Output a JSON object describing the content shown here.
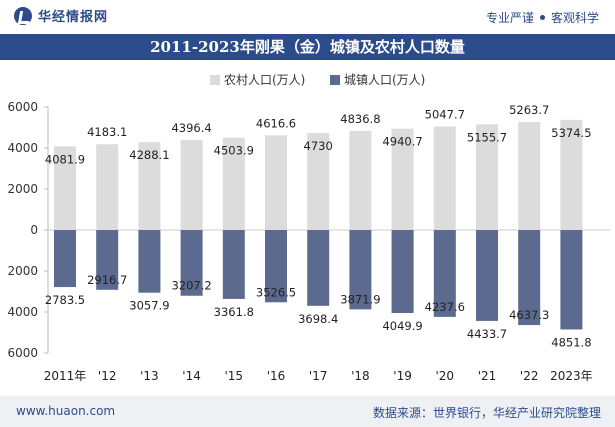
{
  "header": {
    "logo_text": "华经情报网",
    "tagline_left": "专业严谨",
    "tagline_right": "客观科学"
  },
  "footer": {
    "site": "www.huaon.com",
    "source": "数据来源：世界银行，华经产业研究院整理"
  },
  "colors": {
    "brand": "#2c4b8a",
    "rural": "#dcdcdc",
    "urban": "#5b6a8e"
  },
  "chart_data": {
    "type": "bar",
    "title": "2011-2023年刚果（金）城镇及农村人口数量",
    "categories": [
      "2011年",
      "'12",
      "'13",
      "'14",
      "'15",
      "'16",
      "'17",
      "'18",
      "'19",
      "'20",
      "'21",
      "'22",
      "2023年"
    ],
    "series": [
      {
        "name": "农村人口(万人)",
        "values": [
          4081.9,
          4183.1,
          4288.1,
          4396.4,
          4503.9,
          4616.6,
          4730,
          4836.8,
          4940.7,
          5047.7,
          5155.7,
          5263.7,
          5374.5
        ]
      },
      {
        "name": "城镇人口(万人)",
        "values": [
          2783.5,
          2916.7,
          3057.9,
          3207.2,
          3361.8,
          3526.5,
          3698.4,
          3871.9,
          4049.9,
          4237.6,
          4433.7,
          4637.3,
          4851.8
        ]
      }
    ],
    "yticks": [
      "6000",
      "4000",
      "2000",
      "0",
      "2000",
      "4000",
      "6000"
    ],
    "ylim": [
      -6000,
      6000
    ],
    "legend": "top-center",
    "grid": false
  }
}
